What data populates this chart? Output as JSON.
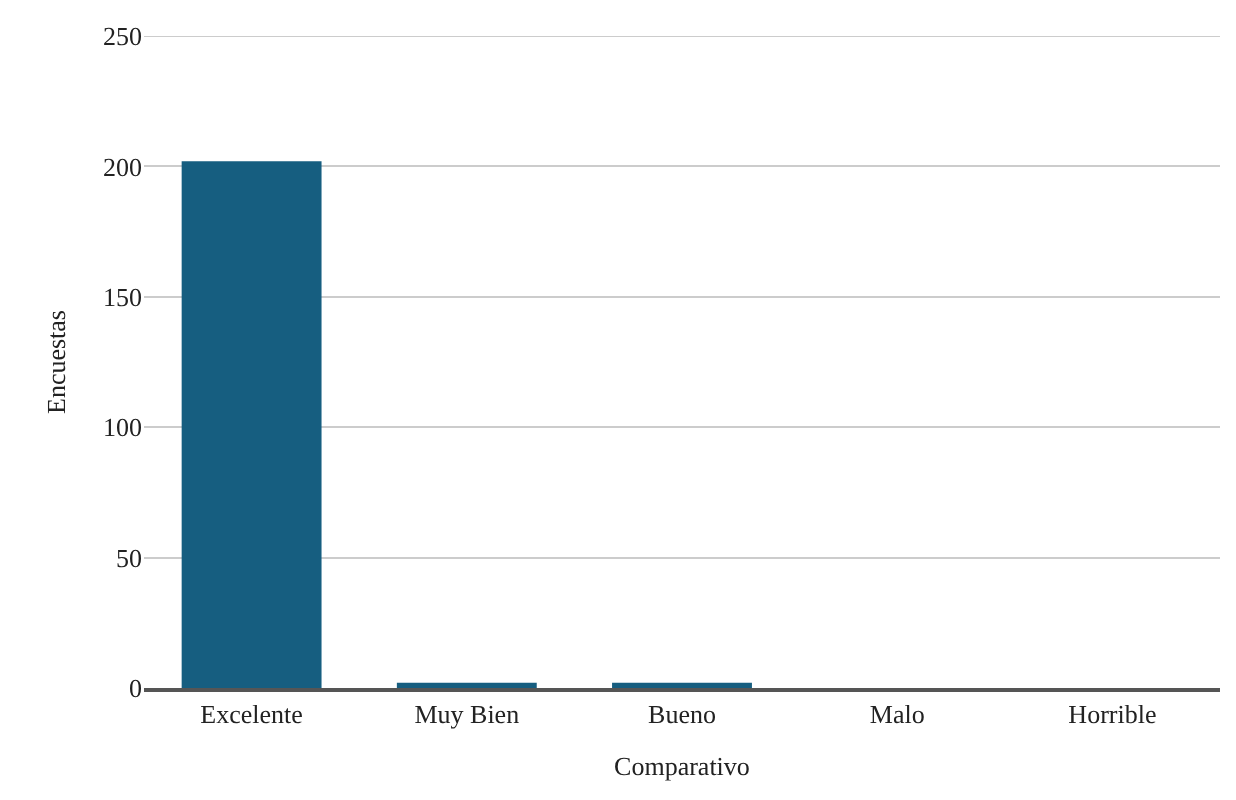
{
  "chart_data": {
    "type": "bar",
    "xlabel": "Comparativo",
    "ylabel": "Encuestas",
    "categories": [
      "Excelente",
      "Muy Bien",
      "Bueno",
      "Malo",
      "Horrible"
    ],
    "values": [
      202,
      2,
      2,
      0,
      0
    ],
    "color": "#165e80",
    "ylim": [
      0,
      250
    ],
    "yticks": [
      0,
      50,
      100,
      150,
      200,
      250
    ],
    "grid": "y"
  }
}
